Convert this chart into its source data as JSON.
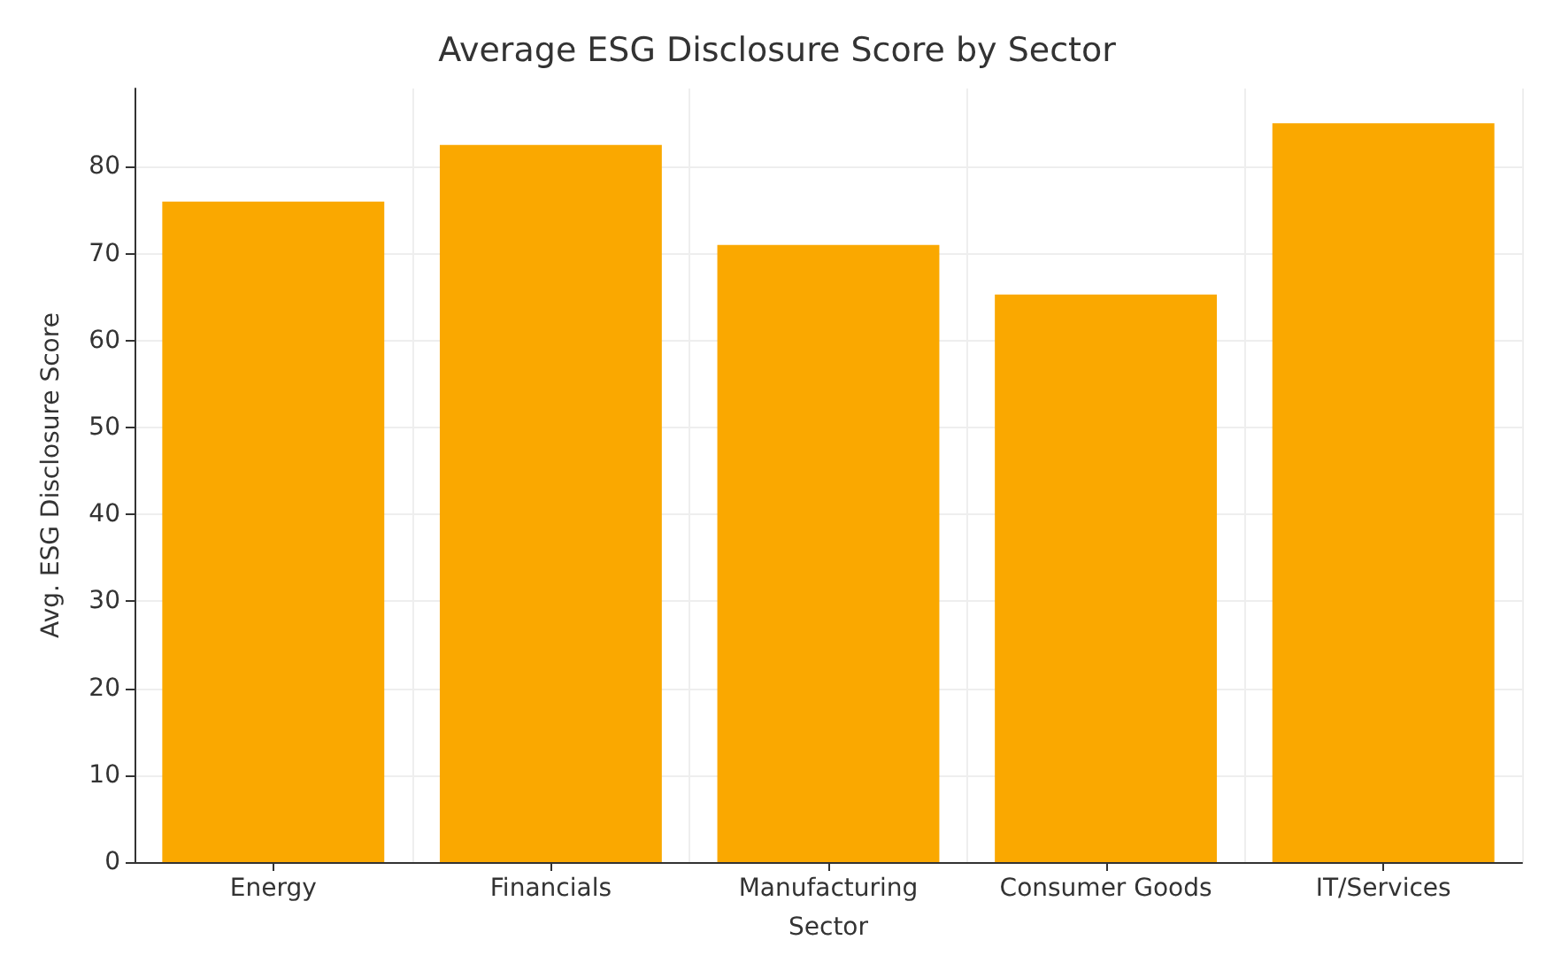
{
  "chart_data": {
    "type": "bar",
    "title": "Average ESG Disclosure Score by Sector",
    "xlabel": "Sector",
    "ylabel": "Avg. ESG Disclosure Score",
    "categories": [
      "Energy",
      "Financials",
      "Manufacturing",
      "Consumer Goods",
      "IT/Services"
    ],
    "values": [
      76,
      82.5,
      71,
      65.3,
      85
    ],
    "color": "#faa800",
    "ylim": [
      0,
      89
    ],
    "yticks": [
      0,
      10,
      20,
      30,
      40,
      50,
      60,
      70,
      80
    ],
    "grid": true
  }
}
